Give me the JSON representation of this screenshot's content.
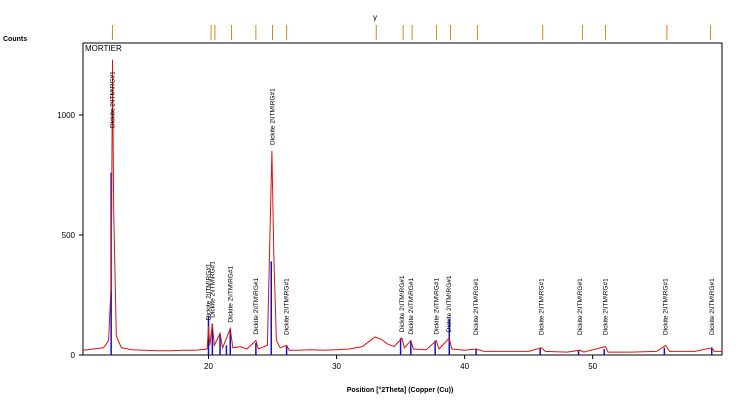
{
  "chart_data": {
    "type": "line",
    "y_label": "Counts",
    "x_label": "Position [°2Theta] (Copper (Cu))",
    "legend_text": "MORTIER",
    "top_symbol": "γ",
    "top_symbol_x": 33.0,
    "xlim": [
      10.2,
      60.1
    ],
    "ylim": [
      0,
      1300
    ],
    "xticks": [
      20,
      30,
      40,
      50
    ],
    "yticks": [
      0,
      500,
      1000
    ],
    "series": [
      {
        "color": "#dd1111",
        "x": [
          10.2,
          11,
          11.8,
          12.2,
          12.4,
          12.5,
          12.6,
          12.8,
          13.2,
          14,
          15,
          16,
          17,
          18,
          19,
          19.9,
          20.0,
          20.1,
          20.3,
          20.45,
          20.9,
          21.1,
          21.7,
          21.9,
          22.5,
          23.0,
          23.7,
          23.9,
          24.6,
          24.95,
          25.1,
          25.3,
          25.6,
          26.1,
          26.3,
          27,
          28,
          29,
          30,
          31,
          32,
          32.5,
          33.0,
          33.5,
          34,
          34.5,
          35.1,
          35.3,
          35.8,
          36,
          37,
          37.8,
          38,
          38.8,
          39,
          40,
          40.9,
          41.5,
          43,
          45,
          46.0,
          46.3,
          48,
          49.0,
          49.3,
          51.0,
          51.2,
          53,
          55,
          55.7,
          56,
          58,
          59.3,
          59.5,
          60.1
        ],
        "values": [
          20,
          25,
          30,
          60,
          300,
          1230,
          600,
          80,
          30,
          22,
          20,
          18,
          18,
          20,
          20,
          25,
          120,
          40,
          130,
          40,
          90,
          30,
          110,
          30,
          35,
          25,
          60,
          25,
          40,
          850,
          420,
          60,
          30,
          40,
          20,
          20,
          22,
          20,
          22,
          25,
          35,
          55,
          75,
          65,
          45,
          35,
          70,
          30,
          60,
          25,
          22,
          60,
          25,
          70,
          25,
          20,
          25,
          15,
          15,
          15,
          30,
          15,
          12,
          20,
          12,
          35,
          12,
          12,
          15,
          40,
          15,
          15,
          30,
          15,
          15
        ]
      }
    ],
    "sticks": {
      "color": "#1111cc",
      "x": [
        12.4,
        20.0,
        20.3,
        20.9,
        21.4,
        21.7,
        23.7,
        24.9,
        26.1,
        35.0,
        35.8,
        37.7,
        38.8,
        40.9,
        45.9,
        48.9,
        50.9,
        55.6,
        59.3
      ],
      "values": [
        760,
        160,
        130,
        90,
        40,
        110,
        50,
        390,
        40,
        70,
        60,
        60,
        150,
        25,
        30,
        20,
        25,
        30,
        30
      ]
    },
    "top_markers": {
      "color": "#d08a20",
      "x": [
        12.5,
        20.2,
        20.5,
        21.8,
        23.7,
        25.0,
        26.1,
        33.1,
        35.2,
        35.9,
        37.8,
        38.9,
        41.0,
        46.1,
        49.2,
        51.0,
        55.8,
        59.2
      ]
    },
    "annotations": [
      {
        "x": 12.5,
        "text": "Dickite 2\\ITM\\RG#1"
      },
      {
        "x": 20.0,
        "text": "Dickite 2\\ITM\\RG#1"
      },
      {
        "x": 20.3,
        "text": "Dickite 2\\ITM\\RG#1"
      },
      {
        "x": 21.7,
        "text": "Dickite 2\\ITM\\RG#1"
      },
      {
        "x": 23.7,
        "text": "Dickite 2\\ITM\\RG#1"
      },
      {
        "x": 25.0,
        "text": "Dickite 2\\ITM\\RG#1"
      },
      {
        "x": 26.1,
        "text": "Dickite 2\\ITM\\RG#1"
      },
      {
        "x": 35.1,
        "text": "Dickite 2\\ITM\\RG#1"
      },
      {
        "x": 35.8,
        "text": "Dickite 2\\ITM\\RG#1"
      },
      {
        "x": 37.8,
        "text": "Dickite 2\\ITM\\RG#1"
      },
      {
        "x": 38.8,
        "text": "Dickite 2\\ITM\\RG#1"
      },
      {
        "x": 40.9,
        "text": "Dickite 2\\ITM\\RG#1"
      },
      {
        "x": 46.0,
        "text": "Dickite 2\\ITM\\RG#1"
      },
      {
        "x": 49.0,
        "text": "Dickite 2\\ITM\\RG#1"
      },
      {
        "x": 51.0,
        "text": "Dickite 2\\ITM\\RG#1"
      },
      {
        "x": 55.7,
        "text": "Dickite 2\\ITM\\RG#1"
      },
      {
        "x": 59.3,
        "text": "Dickite 2\\ITM\\RG#1"
      }
    ]
  }
}
